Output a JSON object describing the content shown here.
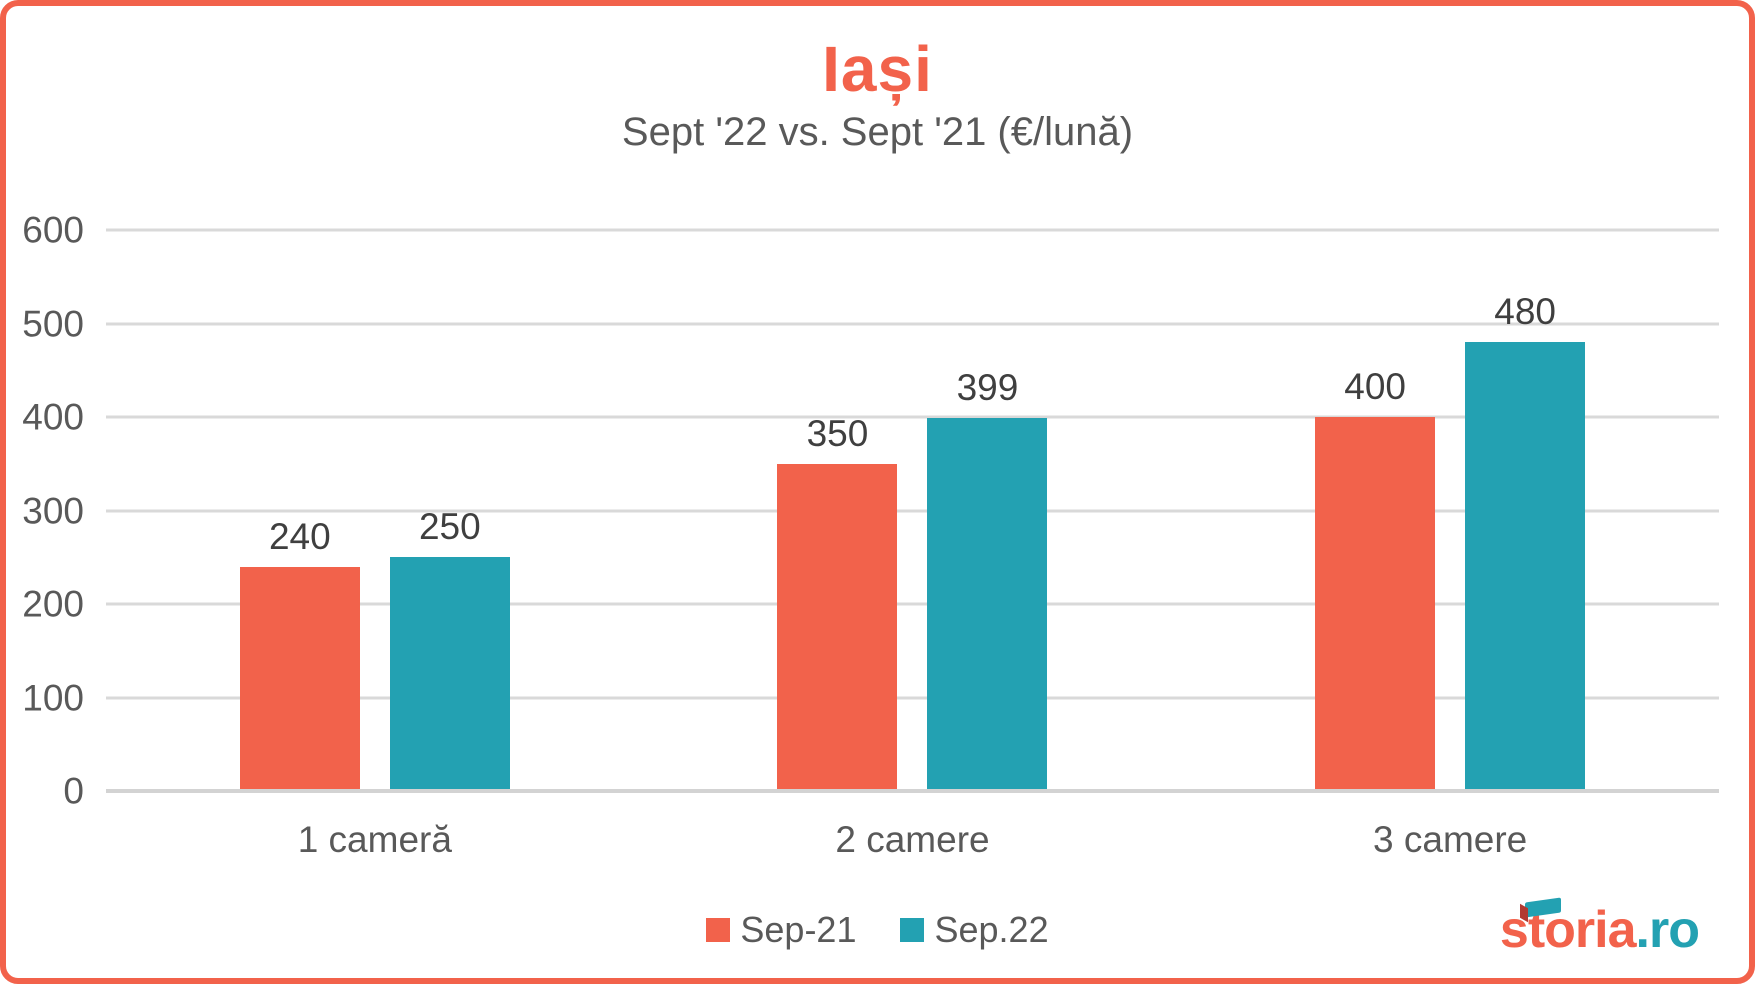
{
  "frame": {
    "border_color": "#f2624b",
    "background": "#ffffff"
  },
  "header": {
    "title": "Iași",
    "subtitle": "Sept '22 vs. Sept '21 (€/lună)"
  },
  "chart_data": {
    "type": "bar",
    "title": "Iași",
    "subtitle": "Sept '22 vs. Sept '21 (€/lună)",
    "categories": [
      "1 cameră",
      "2 camere",
      "3 camere"
    ],
    "series": [
      {
        "name": "Sep-21",
        "color": "#f2624b",
        "values": [
          240,
          350,
          400
        ]
      },
      {
        "name": "Sep.22",
        "color": "#23a1b2",
        "values": [
          250,
          399,
          480
        ]
      }
    ],
    "ylim": [
      0,
      600
    ],
    "ytick_interval": 100,
    "yticks": [
      0,
      100,
      200,
      300,
      400,
      500,
      600
    ],
    "grid": true,
    "gridline_color": "#d9d9d9",
    "axis_text_color": "#595959",
    "data_label_color": "#3f3f3f",
    "legend_position": "bottom"
  },
  "logo": {
    "text_main": "s",
    "text_t": "t",
    "text_rest": "oria",
    "text_suffix": ".ro",
    "main_color": "#f2624b",
    "suffix_color": "#23a1b2"
  }
}
